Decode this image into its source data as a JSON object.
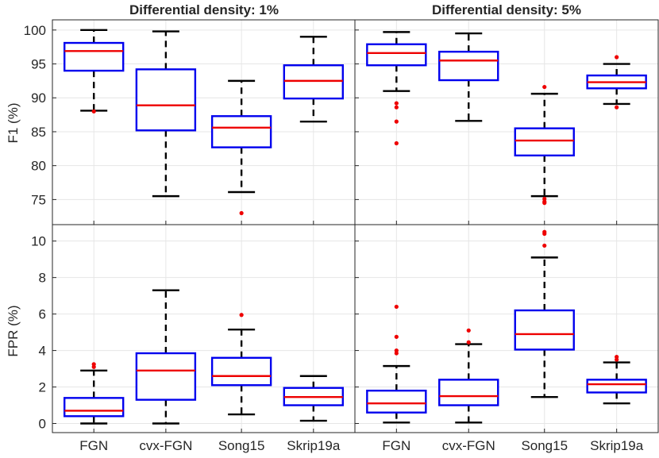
{
  "colors": {
    "box": "#0000ee",
    "median": "#ee0000",
    "whisker": "#000000",
    "outlier": "#ee0000",
    "grid": "#e6e6e6",
    "axis": "#262626"
  },
  "chart_data": {
    "type": "box",
    "categories": [
      "FGN",
      "cvx-FGN",
      "Song15",
      "Skrip19a"
    ],
    "columns": [
      {
        "title": "Differential density: 1%"
      },
      {
        "title": "Differential density: 5%"
      }
    ],
    "rows": [
      {
        "ylabel": "F1 (%)",
        "ylim": [
          71.3,
          101.5
        ],
        "yticks": [
          75,
          80,
          85,
          90,
          95,
          100
        ]
      },
      {
        "ylabel": "FPR (%)",
        "ylim": [
          -0.5,
          10.9
        ],
        "yticks": [
          0,
          2,
          4,
          6,
          8,
          10
        ]
      }
    ],
    "panels": [
      {
        "row": 0,
        "col": 0,
        "boxes": [
          {
            "q1": 94.0,
            "median": 96.9,
            "q3": 98.1,
            "whisker_low": 88.1,
            "whisker_high": 100.0,
            "outliers": [
              88.0
            ]
          },
          {
            "q1": 85.2,
            "median": 88.9,
            "q3": 94.2,
            "whisker_low": 75.5,
            "whisker_high": 99.8,
            "outliers": []
          },
          {
            "q1": 82.7,
            "median": 85.6,
            "q3": 87.3,
            "whisker_low": 76.1,
            "whisker_high": 92.5,
            "outliers": [
              73.0
            ]
          },
          {
            "q1": 89.9,
            "median": 92.5,
            "q3": 94.8,
            "whisker_low": 86.5,
            "whisker_high": 99.0,
            "outliers": []
          }
        ]
      },
      {
        "row": 0,
        "col": 1,
        "boxes": [
          {
            "q1": 94.8,
            "median": 96.6,
            "q3": 97.9,
            "whisker_low": 91.0,
            "whisker_high": 99.7,
            "outliers": [
              89.2,
              88.6,
              86.5,
              83.3
            ]
          },
          {
            "q1": 92.6,
            "median": 95.5,
            "q3": 96.8,
            "whisker_low": 86.6,
            "whisker_high": 99.5,
            "outliers": []
          },
          {
            "q1": 81.5,
            "median": 83.7,
            "q3": 85.5,
            "whisker_low": 75.5,
            "whisker_high": 90.6,
            "outliers": [
              91.6,
              75.1,
              74.7,
              74.5
            ]
          },
          {
            "q1": 91.4,
            "median": 92.3,
            "q3": 93.3,
            "whisker_low": 89.1,
            "whisker_high": 95.0,
            "outliers": [
              96.0,
              88.6
            ]
          }
        ]
      },
      {
        "row": 1,
        "col": 0,
        "boxes": [
          {
            "q1": 0.4,
            "median": 0.7,
            "q3": 1.4,
            "whisker_low": 0.0,
            "whisker_high": 2.9,
            "outliers": [
              3.25,
              3.1
            ]
          },
          {
            "q1": 1.3,
            "median": 2.9,
            "q3": 3.85,
            "whisker_low": 0.0,
            "whisker_high": 7.3,
            "outliers": []
          },
          {
            "q1": 2.1,
            "median": 2.6,
            "q3": 3.6,
            "whisker_low": 0.5,
            "whisker_high": 5.15,
            "outliers": [
              5.95
            ]
          },
          {
            "q1": 1.0,
            "median": 1.45,
            "q3": 1.95,
            "whisker_low": 0.15,
            "whisker_high": 2.6,
            "outliers": []
          }
        ]
      },
      {
        "row": 1,
        "col": 1,
        "boxes": [
          {
            "q1": 0.6,
            "median": 1.1,
            "q3": 1.8,
            "whisker_low": 0.05,
            "whisker_high": 3.15,
            "outliers": [
              6.4,
              4.75,
              4.0,
              3.85
            ]
          },
          {
            "q1": 1.0,
            "median": 1.5,
            "q3": 2.4,
            "whisker_low": 0.05,
            "whisker_high": 4.35,
            "outliers": [
              5.1,
              4.45
            ]
          },
          {
            "q1": 4.05,
            "median": 4.9,
            "q3": 6.2,
            "whisker_low": 1.45,
            "whisker_high": 9.1,
            "outliers": [
              10.5,
              10.4,
              9.75
            ]
          },
          {
            "q1": 1.7,
            "median": 2.15,
            "q3": 2.4,
            "whisker_low": 1.1,
            "whisker_high": 3.35,
            "outliers": [
              3.65,
              3.5
            ]
          }
        ]
      }
    ]
  }
}
